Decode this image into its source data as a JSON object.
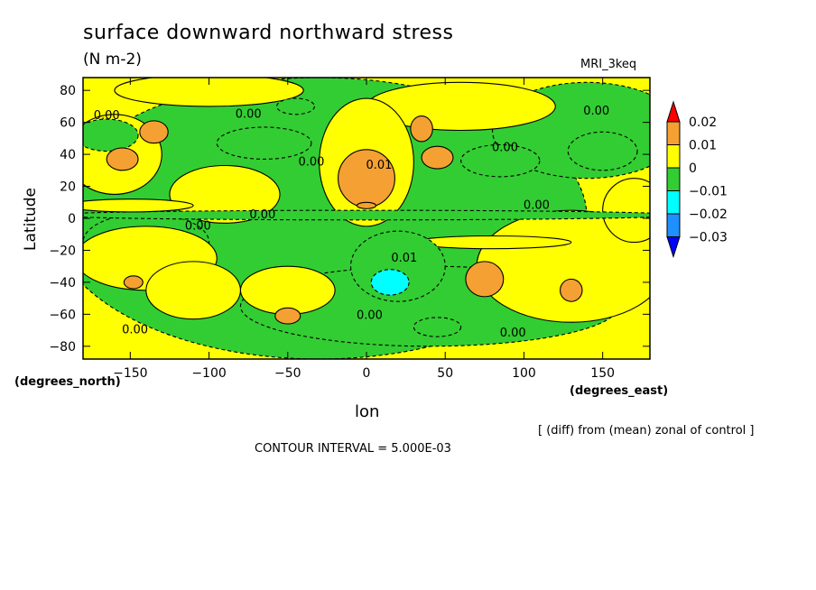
{
  "chart_data": {
    "type": "heatmap",
    "title": "surface downward northward stress",
    "units": "(N m-2)",
    "model": "MRI_3keq",
    "xlabel": "lon",
    "ylabel": "Latitude",
    "x_unit_label": "(degrees_east)",
    "y_unit_label": "(degrees_north)",
    "x_ticks": [
      -150,
      -100,
      -50,
      0,
      50,
      100,
      150
    ],
    "y_ticks": [
      80,
      60,
      40,
      20,
      0,
      -20,
      -40,
      -60,
      -80
    ],
    "xlim": [
      -180,
      180
    ],
    "ylim": [
      -88,
      88
    ],
    "diff_note": "[ (diff) from (mean) zonal of control ]",
    "contour_interval": "CONTOUR INTERVAL = 5.000E-03",
    "colorbar": {
      "labels": [
        "0.02",
        "0.01",
        "0",
        "−0.01",
        "−0.02",
        "−0.03"
      ],
      "levels": [
        0.02,
        0.01,
        0,
        -0.01,
        -0.02,
        -0.03
      ],
      "colors": [
        "#ff0000",
        "#f5a032",
        "#ffff00",
        "#32cd32",
        "#00ffff",
        "#1e90ff",
        "#0000ff"
      ]
    },
    "contour_labels": [
      {
        "text": "0.00",
        "lon": -165,
        "lat": 62
      },
      {
        "text": "0.00",
        "lon": -75,
        "lat": 63
      },
      {
        "text": "0.00",
        "lon": -35,
        "lat": 33
      },
      {
        "text": "0.01",
        "lon": 8,
        "lat": 31
      },
      {
        "text": "0.00",
        "lon": 88,
        "lat": 42
      },
      {
        "text": "0.00",
        "lon": 146,
        "lat": 65
      },
      {
        "text": "0.00",
        "lon": 108,
        "lat": 6
      },
      {
        "text": "0.00",
        "lon": -66,
        "lat": 0
      },
      {
        "text": "0.00",
        "lon": -107,
        "lat": -7
      },
      {
        "text": "0.01",
        "lon": 24,
        "lat": -27
      },
      {
        "text": "0.00",
        "lon": 2,
        "lat": -63
      },
      {
        "text": "0.00",
        "lon": -147,
        "lat": -72
      },
      {
        "text": "0.00",
        "lon": 93,
        "lat": -74
      }
    ],
    "features": [
      {
        "lon": -30,
        "lat": 0,
        "rx": 170,
        "ry": 88,
        "level": -0.005
      },
      {
        "lon": 140,
        "lat": 55,
        "rx": 60,
        "ry": 30,
        "level": -0.005
      },
      {
        "lon": 40,
        "lat": -55,
        "rx": 120,
        "ry": 25,
        "level": -0.005
      },
      {
        "lon": -140,
        "lat": -15,
        "rx": 40,
        "ry": 18,
        "level": -0.005
      },
      {
        "lon": -160,
        "lat": 40,
        "rx": 30,
        "ry": 25,
        "level": 0.005
      },
      {
        "lon": -140,
        "lat": -25,
        "rx": 45,
        "ry": 20,
        "level": 0.005
      },
      {
        "lon": -90,
        "lat": 15,
        "rx": 35,
        "ry": 18,
        "level": 0.005
      },
      {
        "lon": -110,
        "lat": -45,
        "rx": 30,
        "ry": 18,
        "level": 0.005
      },
      {
        "lon": -50,
        "lat": -45,
        "rx": 30,
        "ry": 15,
        "level": 0.005
      },
      {
        "lon": 130,
        "lat": -30,
        "rx": 60,
        "ry": 35,
        "level": 0.005
      },
      {
        "lon": 60,
        "lat": 70,
        "rx": 60,
        "ry": 15,
        "level": 0.005
      },
      {
        "lon": 170,
        "lat": 5,
        "rx": 20,
        "ry": 20,
        "level": 0.005
      },
      {
        "lon": 0,
        "lat": 35,
        "rx": 30,
        "ry": 40,
        "level": 0.005
      },
      {
        "lon": -100,
        "lat": 80,
        "rx": 60,
        "ry": 10,
        "level": 0.005
      },
      {
        "lon": 0,
        "lat": 2,
        "rx": 200,
        "ry": 3,
        "level": -0.005
      },
      {
        "lon": -150,
        "lat": 8,
        "rx": 40,
        "ry": 4,
        "level": 0.005
      },
      {
        "lon": 80,
        "lat": -15,
        "rx": 50,
        "ry": 4,
        "level": 0.005
      },
      {
        "lon": -165,
        "lat": 52,
        "rx": 20,
        "ry": 10,
        "level": -0.01
      },
      {
        "lon": -65,
        "lat": 47,
        "rx": 30,
        "ry": 10,
        "level": -0.01
      },
      {
        "lon": 85,
        "lat": 36,
        "rx": 25,
        "ry": 10,
        "level": -0.01
      },
      {
        "lon": 150,
        "lat": 42,
        "rx": 22,
        "ry": 12,
        "level": -0.01
      },
      {
        "lon": 20,
        "lat": -30,
        "rx": 30,
        "ry": 22,
        "level": -0.01
      },
      {
        "lon": -45,
        "lat": 70,
        "rx": 12,
        "ry": 5,
        "level": -0.01
      },
      {
        "lon": 45,
        "lat": -68,
        "rx": 15,
        "ry": 6,
        "level": -0.01
      },
      {
        "lon": -155,
        "lat": 37,
        "rx": 10,
        "ry": 7,
        "level": 0.01
      },
      {
        "lon": -135,
        "lat": 54,
        "rx": 9,
        "ry": 7,
        "level": 0.01
      },
      {
        "lon": 0,
        "lat": 25,
        "rx": 18,
        "ry": 18,
        "level": 0.01
      },
      {
        "lon": 35,
        "lat": 56,
        "rx": 7,
        "ry": 8,
        "level": 0.01
      },
      {
        "lon": 45,
        "lat": 38,
        "rx": 10,
        "ry": 7,
        "level": 0.01
      },
      {
        "lon": 75,
        "lat": -38,
        "rx": 12,
        "ry": 11,
        "level": 0.01
      },
      {
        "lon": 130,
        "lat": -45,
        "rx": 7,
        "ry": 7,
        "level": 0.01
      },
      {
        "lon": -50,
        "lat": -61,
        "rx": 8,
        "ry": 5,
        "level": 0.01
      },
      {
        "lon": -148,
        "lat": -40,
        "rx": 6,
        "ry": 4,
        "level": 0.01
      },
      {
        "lon": 15,
        "lat": -40,
        "rx": 12,
        "ry": 8,
        "level": -0.015
      },
      {
        "lon": 0,
        "lat": 8,
        "rx": 6,
        "ry": 2,
        "level": 0.015
      }
    ]
  }
}
